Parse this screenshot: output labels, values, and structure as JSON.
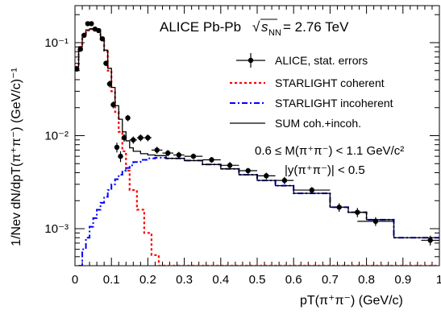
{
  "colors": {
    "alice": "#000000",
    "coherent": "#ff0000",
    "incoherent": "#0000ff",
    "sum": "#000000"
  },
  "header": {
    "experiment": "ALICE Pb-Pb",
    "sqrt_symbol": "√",
    "s_letter": "s",
    "s_subscript": "NN",
    "energy": "= 2.76 TeV"
  },
  "annotations": {
    "mass_cut": "0.6 ≤ M(π⁺π⁻) < 1.1 GeV/c²",
    "rapidity_cut": "|y(π⁺π⁻)| < 0.5"
  },
  "chart_data": {
    "type": "line",
    "title": "ALICE Pb-Pb √sNN = 2.76 TeV",
    "xlabel": "pT(π⁺π⁻) (GeV/c)",
    "ylabel": "1/Nev dN/dpT(π⁺π⁻) (GeV/c)⁻¹",
    "xlim": [
      0,
      1.0
    ],
    "ylim": [
      0.0004,
      0.25
    ],
    "y_scale": "log",
    "grid": false,
    "legend_position": "top-right",
    "x_ticks": [
      {
        "value": 0,
        "label": "0"
      },
      {
        "value": 0.1,
        "label": "0.1"
      },
      {
        "value": 0.2,
        "label": "0.2"
      },
      {
        "value": 0.3,
        "label": "0.3"
      },
      {
        "value": 0.4,
        "label": "0.4"
      },
      {
        "value": 0.5,
        "label": "0.5"
      },
      {
        "value": 0.6,
        "label": "0.6"
      },
      {
        "value": 0.7,
        "label": "0.7"
      },
      {
        "value": 0.8,
        "label": "0.8"
      },
      {
        "value": 0.9,
        "label": "0.9"
      },
      {
        "value": 1.0,
        "label": "1"
      }
    ],
    "y_ticks": [
      {
        "value": 0.001,
        "label": "10⁻³"
      },
      {
        "value": 0.01,
        "label": "10⁻²"
      },
      {
        "value": 0.1,
        "label": "10⁻¹"
      }
    ],
    "legend": [
      {
        "key": "alice",
        "label": "ALICE, stat. errors",
        "style": "marker"
      },
      {
        "key": "coherent",
        "label": "STARLIGHT coherent",
        "style": "dotted"
      },
      {
        "key": "incoherent",
        "label": "STARLIGHT incoherent",
        "style": "dashdot"
      },
      {
        "key": "sum",
        "label": "SUM coh.+incoh.",
        "style": "solid"
      }
    ],
    "series": [
      {
        "key": "alice",
        "name": "ALICE, stat. errors",
        "kind": "points",
        "points": [
          {
            "x": 0.005,
            "y": 0.052,
            "xerr": 0.005,
            "yerr": 0.003
          },
          {
            "x": 0.015,
            "y": 0.085,
            "xerr": 0.005,
            "yerr": 0.004
          },
          {
            "x": 0.025,
            "y": 0.12,
            "xerr": 0.005,
            "yerr": 0.005
          },
          {
            "x": 0.035,
            "y": 0.16,
            "xerr": 0.005,
            "yerr": 0.006
          },
          {
            "x": 0.045,
            "y": 0.16,
            "xerr": 0.005,
            "yerr": 0.006
          },
          {
            "x": 0.055,
            "y": 0.14,
            "xerr": 0.005,
            "yerr": 0.006
          },
          {
            "x": 0.065,
            "y": 0.135,
            "xerr": 0.005,
            "yerr": 0.006
          },
          {
            "x": 0.075,
            "y": 0.11,
            "xerr": 0.005,
            "yerr": 0.005
          },
          {
            "x": 0.085,
            "y": 0.06,
            "xerr": 0.005,
            "yerr": 0.004
          },
          {
            "x": 0.095,
            "y": 0.036,
            "xerr": 0.005,
            "yerr": 0.003
          },
          {
            "x": 0.105,
            "y": 0.0215,
            "xerr": 0.005,
            "yerr": 0.0018
          },
          {
            "x": 0.115,
            "y": 0.0075,
            "xerr": 0.005,
            "yerr": 0.0009
          },
          {
            "x": 0.125,
            "y": 0.006,
            "xerr": 0.005,
            "yerr": 0.0008
          },
          {
            "x": 0.135,
            "y": 0.0095,
            "xerr": 0.005,
            "yerr": 0.0009
          },
          {
            "x": 0.145,
            "y": 0.0155,
            "xerr": 0.005,
            "yerr": 0.0012
          },
          {
            "x": 0.16,
            "y": 0.009,
            "xerr": 0.01,
            "yerr": 0.0008
          },
          {
            "x": 0.18,
            "y": 0.0095,
            "xerr": 0.01,
            "yerr": 0.0008
          },
          {
            "x": 0.2,
            "y": 0.0095,
            "xerr": 0.01,
            "yerr": 0.0008
          },
          {
            "x": 0.225,
            "y": 0.007,
            "xerr": 0.015,
            "yerr": 0.0006
          },
          {
            "x": 0.255,
            "y": 0.0065,
            "xerr": 0.015,
            "yerr": 0.0005
          },
          {
            "x": 0.285,
            "y": 0.0062,
            "xerr": 0.015,
            "yerr": 0.0005
          },
          {
            "x": 0.325,
            "y": 0.006,
            "xerr": 0.025,
            "yerr": 0.0004
          },
          {
            "x": 0.375,
            "y": 0.0055,
            "xerr": 0.025,
            "yerr": 0.0004
          },
          {
            "x": 0.425,
            "y": 0.0048,
            "xerr": 0.025,
            "yerr": 0.0004
          },
          {
            "x": 0.475,
            "y": 0.0042,
            "xerr": 0.025,
            "yerr": 0.0003
          },
          {
            "x": 0.525,
            "y": 0.0037,
            "xerr": 0.025,
            "yerr": 0.0003
          },
          {
            "x": 0.575,
            "y": 0.0033,
            "xerr": 0.025,
            "yerr": 0.0003
          },
          {
            "x": 0.65,
            "y": 0.0026,
            "xerr": 0.05,
            "yerr": 0.0002
          },
          {
            "x": 0.725,
            "y": 0.0017,
            "xerr": 0.025,
            "yerr": 0.00018
          },
          {
            "x": 0.775,
            "y": 0.0015,
            "xerr": 0.025,
            "yerr": 0.00017
          },
          {
            "x": 0.825,
            "y": 0.0012,
            "xerr": 0.05,
            "yerr": 0.00013
          },
          {
            "x": 0.975,
            "y": 0.00075,
            "xerr": 0.025,
            "yerr": 9e-05
          }
        ]
      },
      {
        "key": "coherent",
        "name": "STARLIGHT coherent",
        "kind": "step",
        "style": "dotted",
        "edges": [
          0,
          0.01,
          0.02,
          0.03,
          0.04,
          0.05,
          0.06,
          0.07,
          0.08,
          0.09,
          0.1,
          0.11,
          0.12,
          0.13,
          0.14,
          0.15,
          0.17,
          0.19,
          0.21,
          0.23,
          1.0
        ],
        "values": [
          0.055,
          0.09,
          0.12,
          0.135,
          0.14,
          0.14,
          0.13,
          0.11,
          0.08,
          0.05,
          0.03,
          0.018,
          0.011,
          0.0068,
          0.0042,
          0.0026,
          0.0016,
          0.0009,
          0.00052,
          0.0004
        ]
      },
      {
        "key": "incoherent",
        "name": "STARLIGHT incoherent",
        "kind": "step",
        "style": "dashdot",
        "edges": [
          0.01,
          0.02,
          0.03,
          0.04,
          0.05,
          0.06,
          0.07,
          0.08,
          0.09,
          0.1,
          0.11,
          0.12,
          0.13,
          0.14,
          0.15,
          0.16,
          0.18,
          0.2,
          0.22,
          0.25,
          0.3,
          0.35,
          0.4,
          0.45,
          0.5,
          0.55,
          0.6,
          0.7,
          0.75,
          0.8,
          0.875,
          1.0
        ],
        "values": [
          0.0004,
          0.0006,
          0.0008,
          0.00105,
          0.0013,
          0.0016,
          0.0019,
          0.0022,
          0.0026,
          0.003,
          0.0034,
          0.0038,
          0.0042,
          0.0045,
          0.0048,
          0.0052,
          0.0055,
          0.0057,
          0.0058,
          0.0057,
          0.0054,
          0.0049,
          0.0044,
          0.0038,
          0.0033,
          0.0029,
          0.0024,
          0.0017,
          0.0015,
          0.00125,
          0.0008
        ]
      },
      {
        "key": "sum",
        "name": "SUM coh.+incoh.",
        "kind": "step",
        "style": "solid",
        "edges": [
          0,
          0.01,
          0.02,
          0.03,
          0.04,
          0.05,
          0.06,
          0.07,
          0.08,
          0.09,
          0.1,
          0.11,
          0.12,
          0.13,
          0.14,
          0.15,
          0.16,
          0.18,
          0.2,
          0.22,
          0.25,
          0.3,
          0.35,
          0.4,
          0.45,
          0.5,
          0.55,
          0.6,
          0.7,
          0.75,
          0.8,
          0.875,
          1.0
        ],
        "values": [
          0.055,
          0.09,
          0.122,
          0.137,
          0.141,
          0.142,
          0.132,
          0.113,
          0.083,
          0.053,
          0.033,
          0.021,
          0.015,
          0.011,
          0.0088,
          0.0074,
          0.0068,
          0.0064,
          0.0062,
          0.0061,
          0.0057,
          0.0054,
          0.0049,
          0.0044,
          0.0038,
          0.0033,
          0.0029,
          0.0024,
          0.0017,
          0.0015,
          0.00125,
          0.0008
        ]
      }
    ]
  }
}
